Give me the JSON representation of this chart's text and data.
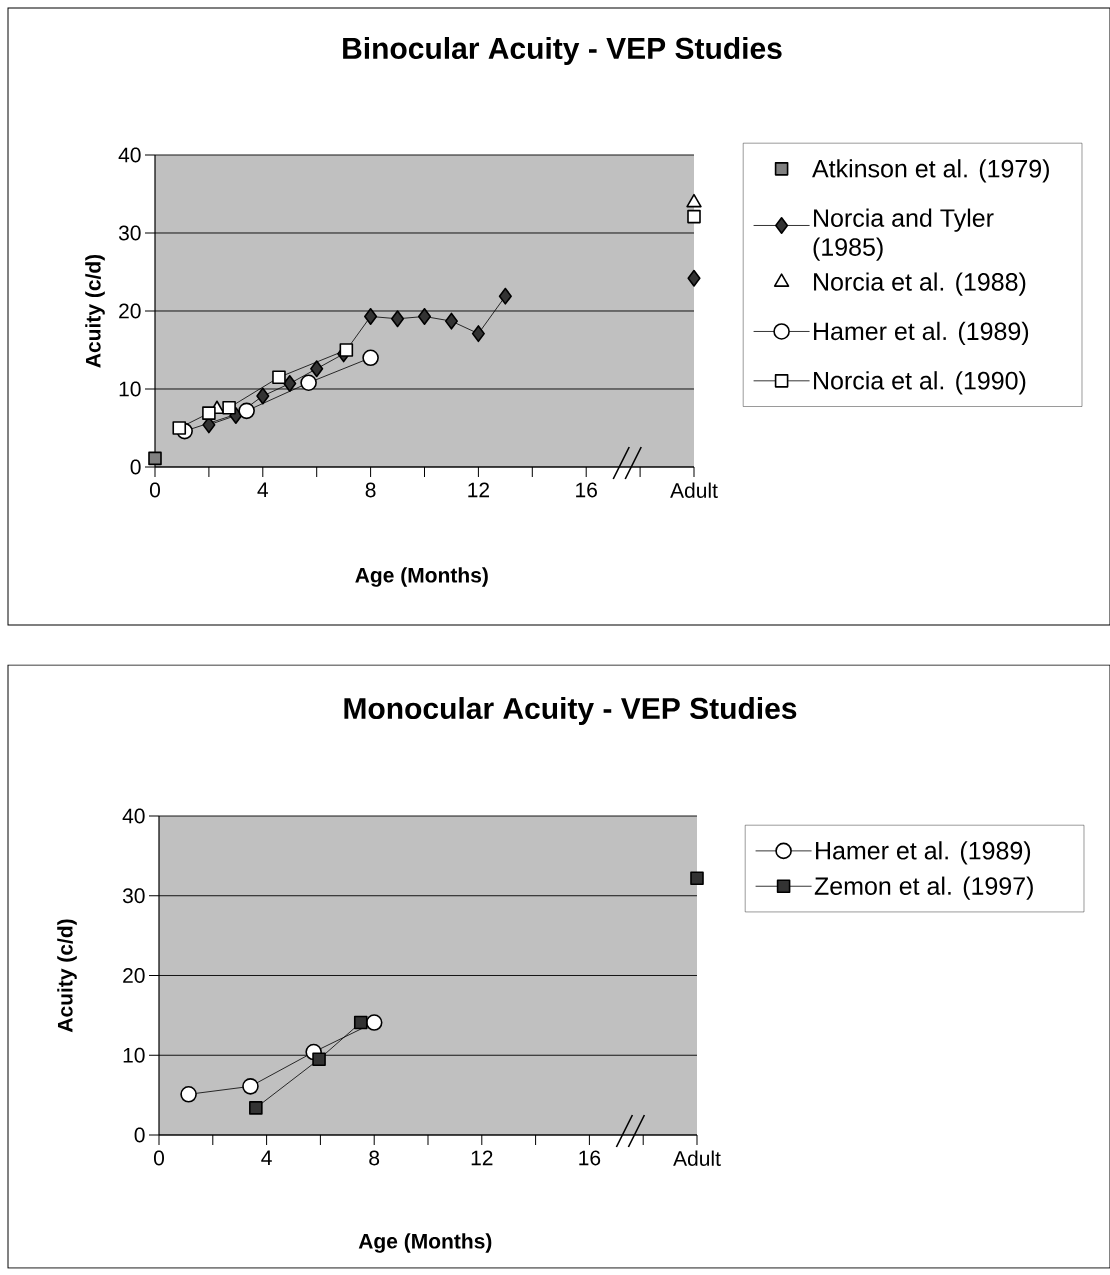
{
  "chart_data": [
    {
      "type": "line",
      "title": "Binocular Acuity - VEP Studies",
      "xlabel": "Age (Months)",
      "ylabel": "Acuity (c/d)",
      "xlim": [
        0,
        20
      ],
      "ylim": [
        0,
        40
      ],
      "xticks": [
        0,
        {
          "value": 2,
          "label": null
        },
        4,
        {
          "value": 6,
          "label": null
        },
        8,
        {
          "value": 10,
          "label": null
        },
        12,
        {
          "value": 14,
          "label": null
        },
        16,
        {
          "value": 18,
          "label": null
        },
        {
          "value": 20,
          "label": "Adult"
        }
      ],
      "yticks": [
        0,
        10,
        20,
        30,
        40
      ],
      "grid": "y",
      "legend": "right",
      "series": [
        {
          "name": "Atkinson et al. (1979)",
          "type": "scatter",
          "marker": "square",
          "color": "#808080",
          "x": [
            0
          ],
          "values": [
            1.1
          ]
        },
        {
          "name": "Norcia and Tyler (1985)",
          "type": "line",
          "marker": "diamond",
          "line_style": "solid",
          "color": "#333333",
          "x": [
            2,
            3,
            4,
            5,
            6,
            7,
            8,
            9,
            10,
            11,
            12,
            13,
            null,
            20
          ],
          "values": [
            5.4,
            6.6,
            9.1,
            10.7,
            12.6,
            14.5,
            19.3,
            19.0,
            19.3,
            18.7,
            17.1,
            21.9,
            null,
            24.2
          ]
        },
        {
          "name": "Norcia et al. (1988)",
          "type": "scatter",
          "marker": "triangle",
          "color": "#ffffff",
          "x": [
            2.3,
            20
          ],
          "values": [
            7.4,
            33.9
          ]
        },
        {
          "name": "Hamer et al. (1989)",
          "type": "line",
          "marker": "circle",
          "line_style": "solid",
          "color": "#ffffff",
          "x": [
            1.1,
            3.4,
            5.7,
            8.0
          ],
          "values": [
            4.6,
            7.2,
            10.8,
            14.0
          ]
        },
        {
          "name": "Norcia et al. (1990)",
          "type": "line",
          "marker": "square",
          "line_style": "solid",
          "color": "#ffffff",
          "x": [
            0.9,
            2.0,
            2.75,
            4.6,
            7.1,
            null,
            20
          ],
          "values": [
            5.0,
            6.9,
            7.6,
            11.5,
            15.0,
            null,
            32.1
          ]
        }
      ]
    },
    {
      "type": "line",
      "title": "Monocular Acuity - VEP Studies",
      "xlabel": "Age (Months)",
      "ylabel": "Acuity (c/d)",
      "xlim": [
        0,
        20
      ],
      "ylim": [
        0,
        40
      ],
      "xticks": [
        0,
        {
          "value": 2,
          "label": null
        },
        4,
        {
          "value": 6,
          "label": null
        },
        8,
        {
          "value": 10,
          "label": null
        },
        12,
        {
          "value": 14,
          "label": null
        },
        16,
        {
          "value": 18,
          "label": null
        },
        {
          "value": 20,
          "label": "Adult"
        }
      ],
      "yticks": [
        0,
        10,
        20,
        30,
        40
      ],
      "grid": "y",
      "legend": "right",
      "series": [
        {
          "name": "Hamer et al. (1989)",
          "type": "line",
          "marker": "circle",
          "line_style": "solid",
          "color": "#ffffff",
          "x": [
            1.1,
            3.4,
            5.75,
            8.0
          ],
          "values": [
            5.1,
            6.1,
            10.4,
            14.1
          ]
        },
        {
          "name": "Zemon et al. (1997)",
          "type": "line",
          "marker": "square",
          "line_style": "solid",
          "color": "#333333",
          "x": [
            3.6,
            5.95,
            7.5,
            null,
            20
          ],
          "values": [
            3.4,
            9.5,
            14.1,
            null,
            32.2
          ]
        }
      ]
    }
  ]
}
